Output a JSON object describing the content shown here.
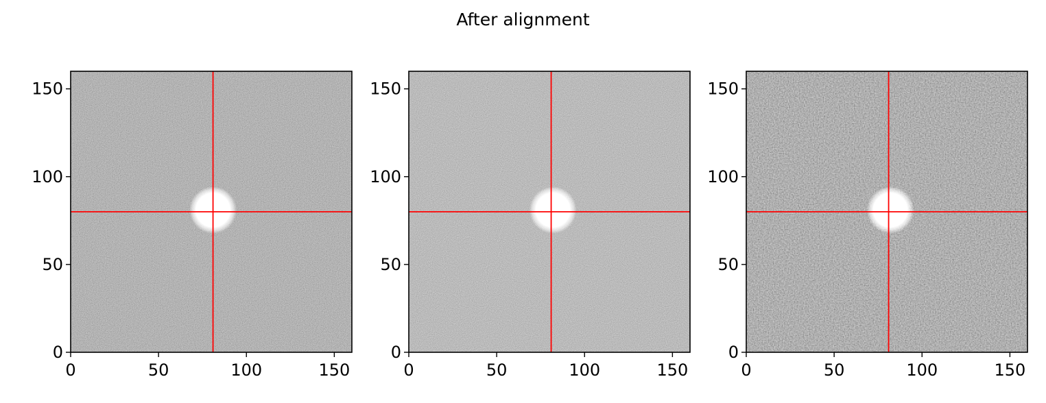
{
  "figure": {
    "title": "After alignment"
  },
  "colors": {
    "crosshair": "#ff0000",
    "frame": "#000000",
    "background_noise": "#5a5a5a",
    "star": "#ffffff"
  },
  "chart_data": [
    {
      "type": "heatmap",
      "colormap": "gray",
      "xlim": [
        0,
        160
      ],
      "ylim": [
        0,
        160
      ],
      "xticks": [
        0,
        50,
        100,
        150
      ],
      "yticks": [
        0,
        50,
        100,
        150
      ],
      "grid": false,
      "crosshair": {
        "x": 81,
        "y": 80
      },
      "star": {
        "x": 81,
        "y": 81,
        "radius": 12
      },
      "noise_level": "medium"
    },
    {
      "type": "heatmap",
      "colormap": "gray",
      "xlim": [
        0,
        160
      ],
      "ylim": [
        0,
        160
      ],
      "xticks": [
        0,
        50,
        100,
        150
      ],
      "yticks": [
        0,
        50,
        100,
        150
      ],
      "grid": false,
      "crosshair": {
        "x": 81,
        "y": 80
      },
      "star": {
        "x": 82,
        "y": 81,
        "radius": 12
      },
      "noise_level": "light"
    },
    {
      "type": "heatmap",
      "colormap": "gray",
      "xlim": [
        0,
        160
      ],
      "ylim": [
        0,
        160
      ],
      "xticks": [
        0,
        50,
        100,
        150
      ],
      "yticks": [
        0,
        50,
        100,
        150
      ],
      "grid": false,
      "crosshair": {
        "x": 81,
        "y": 80
      },
      "star": {
        "x": 82,
        "y": 81,
        "radius": 12
      },
      "noise_level": "heavy"
    }
  ]
}
